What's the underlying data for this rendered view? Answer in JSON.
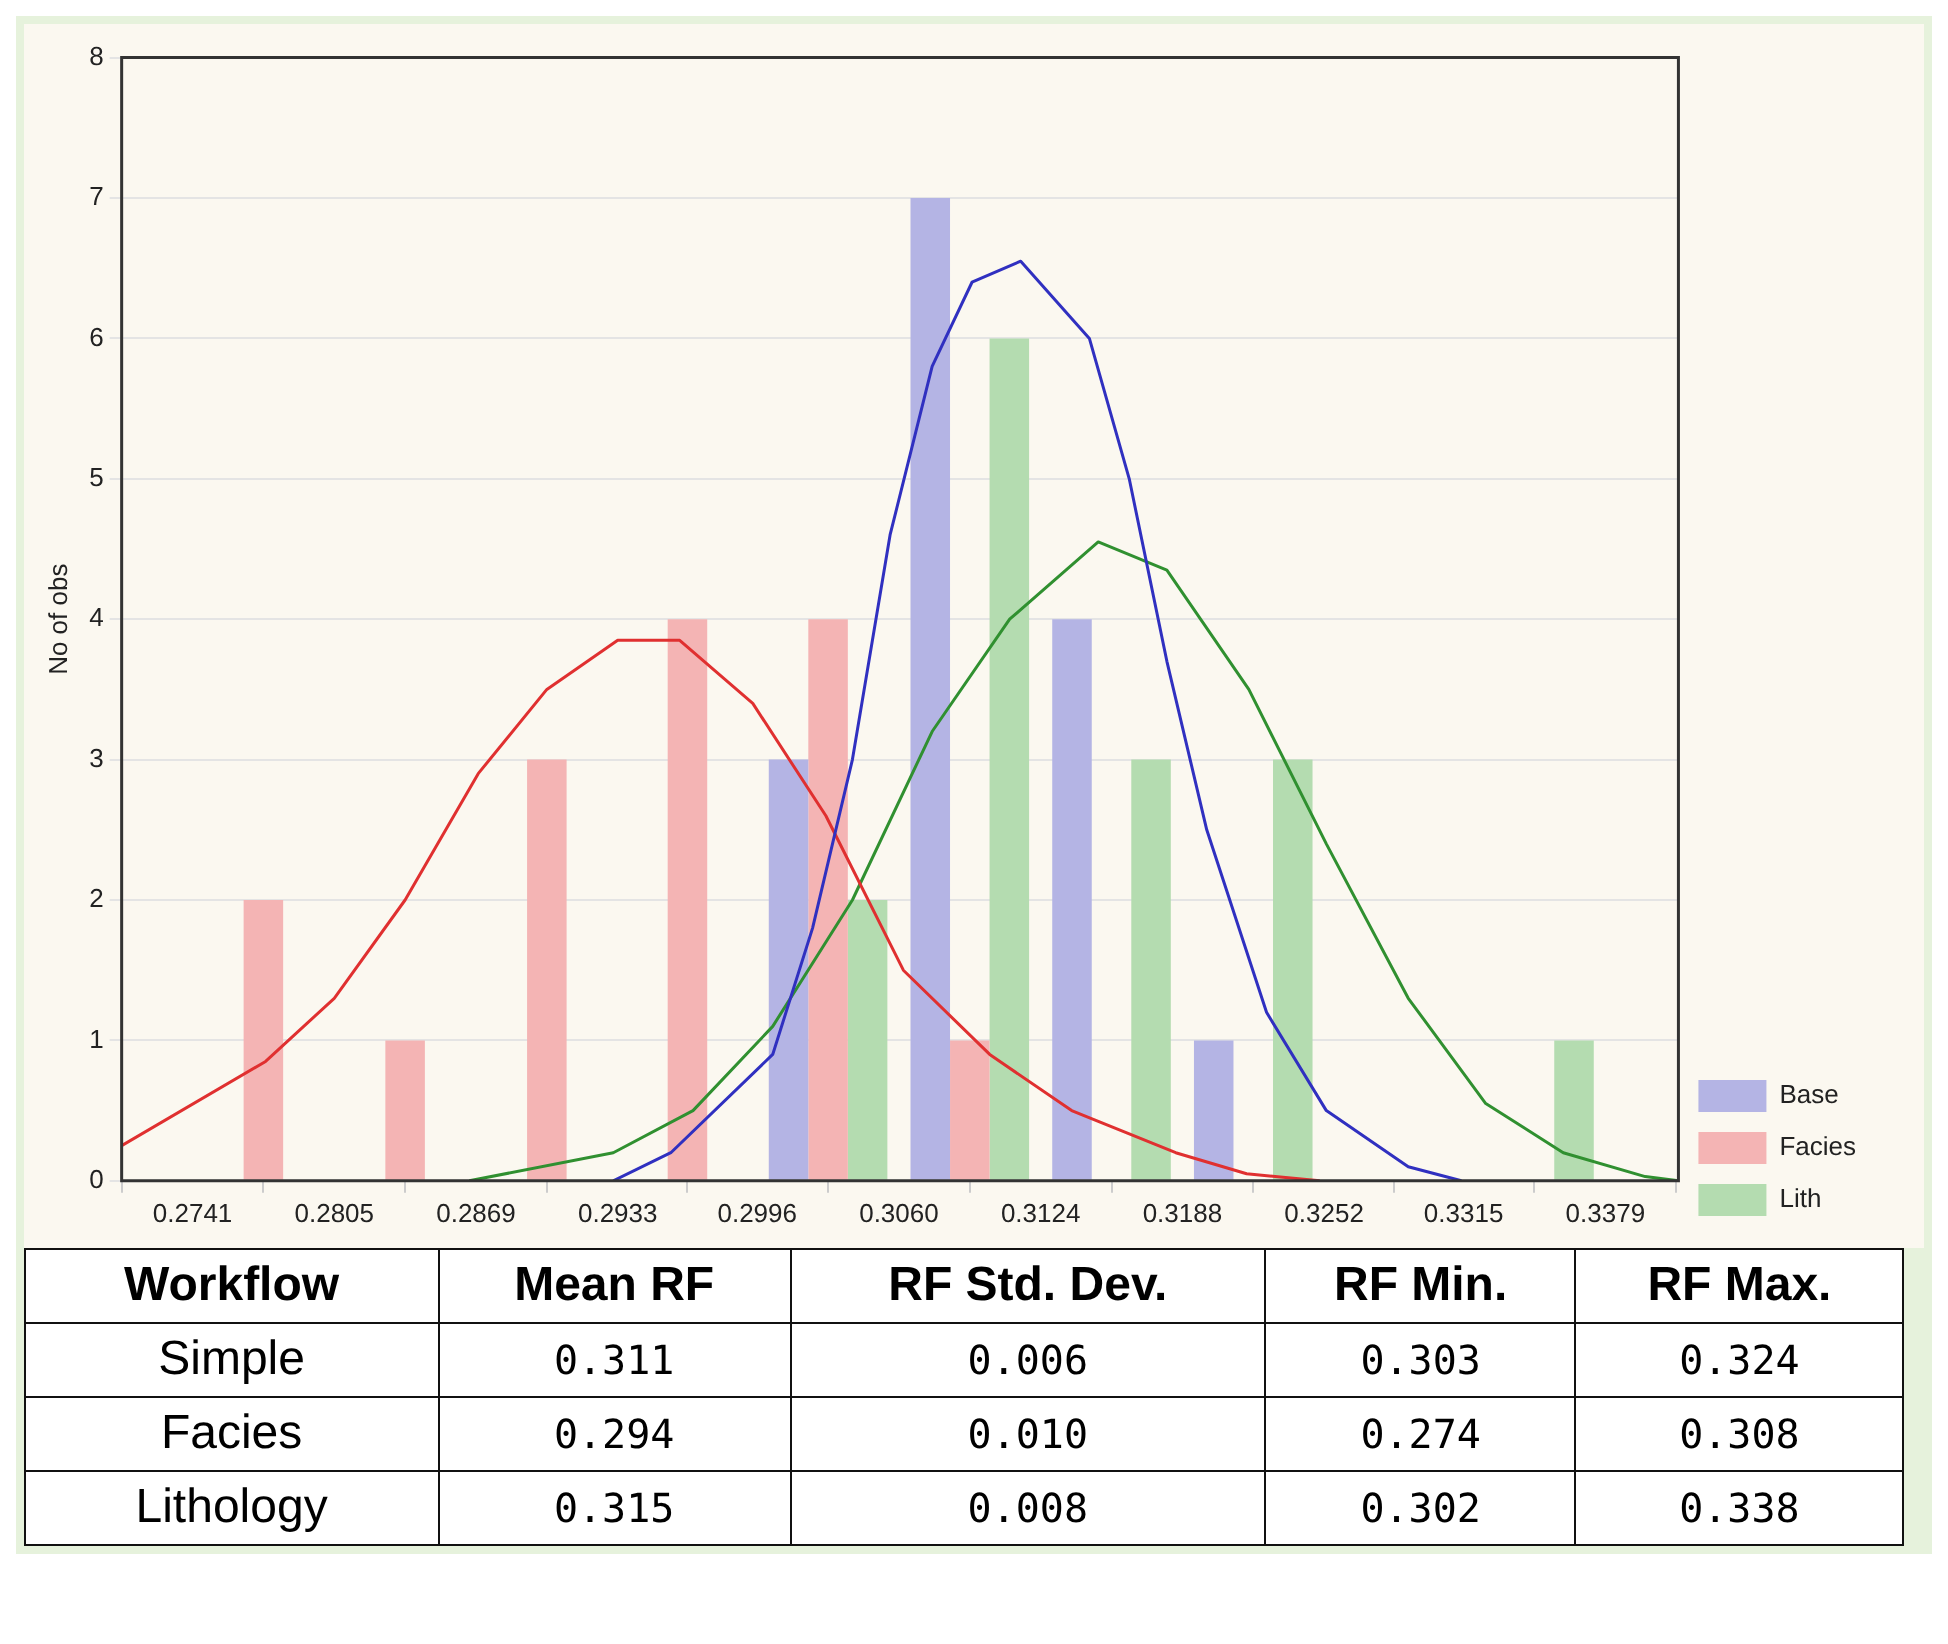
{
  "chart_data": [
    {
      "type": "histogram",
      "ylabel": "No of obs",
      "bins": [
        0.2741,
        0.2805,
        0.2869,
        0.2933,
        0.2996,
        0.306,
        0.3124,
        0.3188,
        0.3252,
        0.3315,
        0.3379
      ],
      "xlim": [
        0.2709,
        0.3412
      ],
      "xticks": [
        0.2741,
        0.2805,
        0.2869,
        0.2933,
        0.2996,
        {
          "value": 0.306,
          "label": "0.3060"
        },
        0.3124,
        0.3188,
        0.3252,
        0.3315,
        0.3379
      ],
      "ylim": [
        0,
        8
      ],
      "yticks": [
        0,
        1,
        2,
        3,
        4,
        5,
        6,
        7,
        8
      ],
      "grid": "y",
      "legend": "bottom right",
      "series": [
        {
          "name": "Base",
          "color": "#b4b4e4",
          "values": [
            0,
            0,
            0,
            0,
            3,
            7,
            4,
            1,
            0,
            0
          ]
        },
        {
          "name": "Facies",
          "color": "#f4b4b4",
          "values": [
            2,
            1,
            3,
            4,
            4,
            1,
            0,
            0,
            0,
            0
          ]
        },
        {
          "name": "Lith",
          "color": "#b4dcb0",
          "values": [
            0,
            0,
            0,
            0,
            2,
            6,
            3,
            3,
            0,
            1
          ]
        },
        {
          "type": "line",
          "color": "#3030c0",
          "x": [
            0.2931,
            0.2957,
            0.3003,
            0.3021,
            0.3039,
            0.3056,
            0.3075,
            0.3093,
            0.3115,
            0.3146,
            0.3164,
            0.3181,
            0.3199,
            0.3226,
            0.3253,
            0.329,
            0.3314
          ],
          "values": [
            0,
            0.2,
            0.9,
            1.8,
            3,
            4.6,
            5.8,
            6.4,
            6.55,
            6,
            5,
            3.7,
            2.5,
            1.2,
            0.5,
            0.1,
            0
          ]
        },
        {
          "type": "line",
          "color": "#e03030",
          "x": [
            0.2709,
            0.2774,
            0.2805,
            0.2837,
            0.287,
            0.2901,
            0.2933,
            0.2961,
            0.2994,
            0.3027,
            0.3062,
            0.3101,
            0.3138,
            0.3185,
            0.3217,
            0.325
          ],
          "values": [
            0.25,
            0.85,
            1.3,
            2,
            2.9,
            3.5,
            3.85,
            3.85,
            3.4,
            2.6,
            1.5,
            0.9,
            0.5,
            0.2,
            0.05,
            0
          ]
        },
        {
          "type": "line",
          "color": "#309030",
          "x": [
            0.2866,
            0.2931,
            0.2967,
            0.3003,
            0.3039,
            0.3075,
            0.311,
            0.315,
            0.3181,
            0.3218,
            0.3253,
            0.329,
            0.3325,
            0.336,
            0.3397,
            0.3412
          ],
          "values": [
            0,
            0.2,
            0.5,
            1.1,
            2,
            3.2,
            4,
            4.55,
            4.35,
            3.5,
            2.4,
            1.3,
            0.55,
            0.2,
            0.03,
            0
          ]
        }
      ]
    },
    {
      "type": "other",
      "categories": [
        "Workflow",
        "Mean RF",
        "RF Std. Dev.",
        "RF Min.",
        "RF Max."
      ],
      "y_categories": [
        "Simple",
        "Facies",
        "Lithology"
      ],
      "cell_labels": [
        [
          "0.311",
          "0.006",
          "0.303",
          "0.324"
        ],
        [
          "0.294",
          "0.010",
          "0.274",
          "0.308"
        ],
        [
          "0.315",
          "0.008",
          "0.302",
          "0.338"
        ]
      ]
    }
  ]
}
